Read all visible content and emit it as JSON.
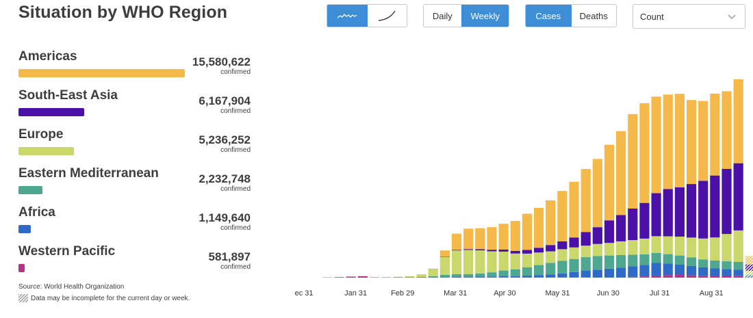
{
  "title": "Situation by WHO Region",
  "controls": {
    "chart_type": {
      "options": [
        {
          "icon": "linear-scale-icon"
        },
        {
          "icon": "log-scale-icon"
        }
      ],
      "selected": 0
    },
    "period": {
      "options": [
        "Daily",
        "Weekly"
      ],
      "selected": "Weekly"
    },
    "metric": {
      "options": [
        "Cases",
        "Deaths"
      ],
      "selected": "Cases"
    },
    "scale_select": {
      "value": "Count"
    }
  },
  "regions": [
    {
      "name": "Americas",
      "value": "15,580,622",
      "unit": "confirmed",
      "color": "#f4b949",
      "share": 1.0
    },
    {
      "name": "South-East Asia",
      "value": "6,167,904",
      "unit": "confirmed",
      "color": "#4a10a8",
      "share": 0.396
    },
    {
      "name": "Europe",
      "value": "5,236,252",
      "unit": "confirmed",
      "color": "#c9d76b",
      "share": 0.336
    },
    {
      "name": "Eastern Mediterranean",
      "value": "2,232,748",
      "unit": "confirmed",
      "color": "#4ea88f",
      "share": 0.143
    },
    {
      "name": "Africa",
      "value": "1,149,640",
      "unit": "confirmed",
      "color": "#2f6bc6",
      "share": 0.074
    },
    {
      "name": "Western Pacific",
      "value": "581,897",
      "unit": "confirmed",
      "color": "#b8318a",
      "share": 0.037
    }
  ],
  "footer": {
    "source": "Source:  World Health Organization",
    "note": "Data may be incomplete for the current day or week."
  },
  "chart_data": {
    "type": "bar",
    "stacked": true,
    "x_tick_labels": [
      "ec 31",
      "Jan 31",
      "Feb 29",
      "Mar 31",
      "Apr 30",
      "May 31",
      "Jun 30",
      "Jul 31",
      "Aug 31"
    ],
    "x_tick_week_index": [
      0,
      4.4,
      8.4,
      12.9,
      17.1,
      21.6,
      25.9,
      30.3,
      34.7
    ],
    "series": [
      {
        "name": "Western Pacific",
        "color": "#b8318a",
        "values": [
          0,
          0,
          2500,
          5000,
          10000,
          14000,
          3000,
          3000,
          4000,
          4000,
          4000,
          4000,
          4000,
          4000,
          4000,
          4000,
          4000,
          5000,
          5000,
          5000,
          5000,
          5000,
          5000,
          5000,
          5000,
          6000,
          6000,
          6000,
          8000,
          12000,
          20000,
          24000,
          26000,
          22000,
          18000,
          16000,
          16000,
          15000,
          10000
        ]
      },
      {
        "name": "Africa",
        "color": "#2f6bc6",
        "values": [
          0,
          0,
          0,
          0,
          0,
          0,
          0,
          0,
          0,
          0,
          0,
          0,
          2000,
          5000,
          5000,
          6000,
          7000,
          8000,
          10000,
          14000,
          20000,
          26000,
          36000,
          48000,
          60000,
          70000,
          80000,
          90000,
          100000,
          110000,
          120000,
          110000,
          100000,
          90000,
          80000,
          72000,
          65000,
          60000,
          0
        ]
      },
      {
        "name": "Eastern Mediterranean",
        "color": "#4ea88f",
        "values": [
          0,
          0,
          0,
          0,
          0,
          0,
          0,
          0,
          0,
          1000,
          3000,
          10000,
          20000,
          25000,
          25000,
          30000,
          40000,
          55000,
          65000,
          80000,
          95000,
          110000,
          120000,
          125000,
          130000,
          130000,
          125000,
          120000,
          110000,
          100000,
          95000,
          90000,
          85000,
          80000,
          75000,
          75000,
          75000,
          75000,
          0
        ]
      },
      {
        "name": "Europe",
        "color": "#c9d76b",
        "values": [
          0,
          0,
          0,
          0,
          0,
          0,
          0,
          0,
          4000,
          8000,
          25000,
          70000,
          170000,
          225000,
          230000,
          220000,
          200000,
          180000,
          150000,
          130000,
          120000,
          110000,
          110000,
          110000,
          110000,
          115000,
          120000,
          130000,
          140000,
          150000,
          160000,
          170000,
          180000,
          190000,
          200000,
          220000,
          260000,
          300000,
          0
        ]
      },
      {
        "name": "South-East Asia",
        "color": "#4a10a8",
        "values": [
          0,
          0,
          0,
          0,
          0,
          0,
          0,
          0,
          0,
          0,
          0,
          1000,
          3000,
          5000,
          8000,
          11000,
          15000,
          20000,
          25000,
          35000,
          45000,
          60000,
          75000,
          95000,
          130000,
          160000,
          215000,
          250000,
          300000,
          340000,
          410000,
          450000,
          470000,
          510000,
          550000,
          590000,
          620000,
          640000,
          0
        ]
      },
      {
        "name": "Americas",
        "color": "#f4b949",
        "values": [
          0,
          0,
          0,
          0,
          0,
          0,
          0,
          0,
          0,
          0,
          0,
          0,
          60000,
          155000,
          195000,
          200000,
          215000,
          245000,
          285000,
          345000,
          380000,
          425000,
          480000,
          530000,
          600000,
          650000,
          720000,
          800000,
          900000,
          950000,
          920000,
          900000,
          890000,
          800000,
          760000,
          780000,
          740000,
          800000,
          0
        ]
      }
    ],
    "partial_week": {
      "index": 38,
      "pattern": "hatched",
      "values": [
        3000,
        8000,
        15000,
        40000,
        60000,
        80000
      ]
    },
    "ylim": [
      0,
      2000000
    ],
    "grid": false,
    "legend": "left-panel"
  }
}
